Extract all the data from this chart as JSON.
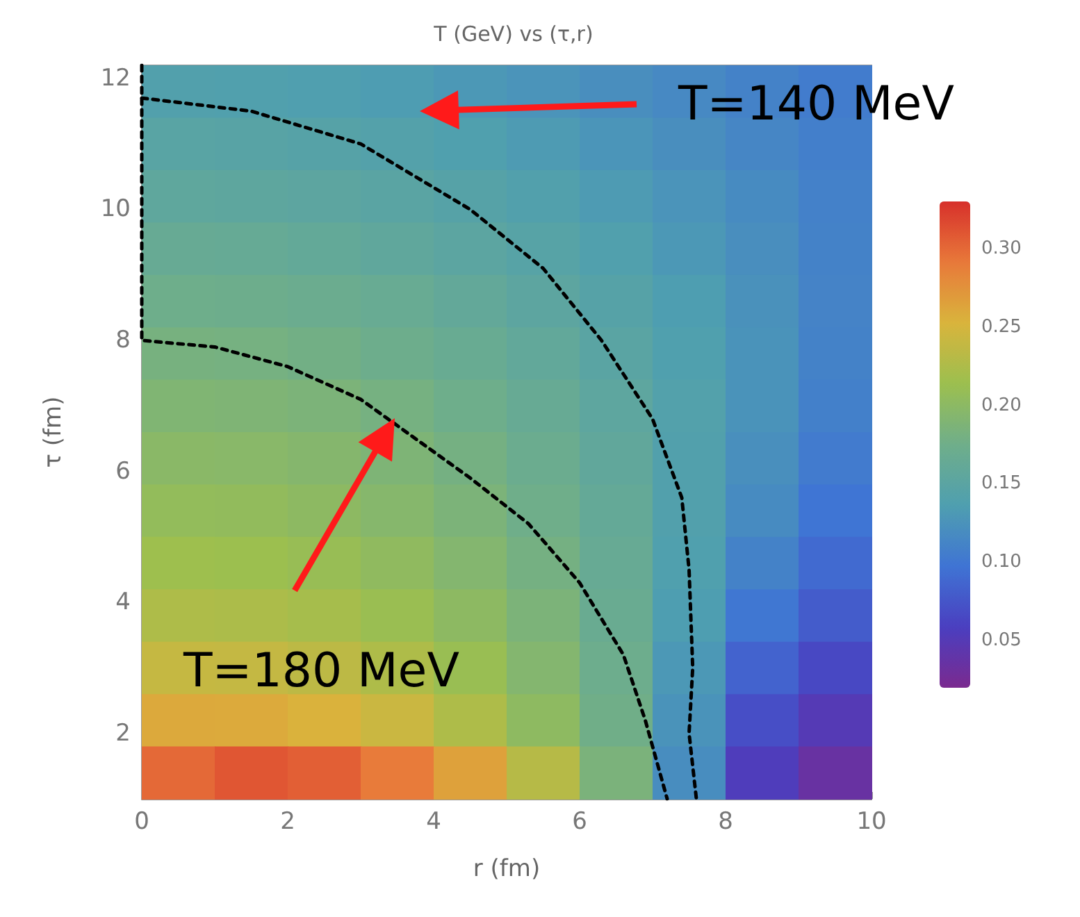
{
  "chart_data": {
    "type": "heatmap",
    "title": "T (GeV) vs (τ,r)",
    "xlabel": "r (fm)",
    "ylabel": "τ (fm)",
    "x": [
      0.5,
      1.5,
      2.5,
      3.5,
      4.5,
      5.5,
      6.5,
      7.5,
      8.5,
      9.5
    ],
    "y": [
      11.8,
      11.0,
      10.2,
      9.4,
      8.6,
      7.8,
      7.0,
      6.2,
      5.4,
      4.6,
      3.8,
      3.0,
      2.2,
      1.4
    ],
    "cells": [
      [
        0.14,
        0.139,
        0.137,
        0.134,
        0.13,
        0.126,
        0.121,
        0.116,
        0.11,
        0.105
      ],
      [
        0.148,
        0.147,
        0.145,
        0.142,
        0.138,
        0.133,
        0.127,
        0.121,
        0.114,
        0.107
      ],
      [
        0.156,
        0.155,
        0.153,
        0.15,
        0.145,
        0.14,
        0.133,
        0.126,
        0.118,
        0.109
      ],
      [
        0.165,
        0.164,
        0.161,
        0.157,
        0.152,
        0.146,
        0.139,
        0.13,
        0.121,
        0.11
      ],
      [
        0.174,
        0.173,
        0.17,
        0.166,
        0.16,
        0.153,
        0.145,
        0.135,
        0.124,
        0.111
      ],
      [
        0.182,
        0.181,
        0.178,
        0.173,
        0.167,
        0.159,
        0.149,
        0.138,
        0.125,
        0.11
      ],
      [
        0.19,
        0.189,
        0.186,
        0.181,
        0.174,
        0.165,
        0.154,
        0.141,
        0.125,
        0.108
      ],
      [
        0.198,
        0.197,
        0.194,
        0.188,
        0.18,
        0.17,
        0.158,
        0.14,
        0.122,
        0.104
      ],
      [
        0.206,
        0.205,
        0.201,
        0.195,
        0.186,
        0.175,
        0.162,
        0.14,
        0.118,
        0.098
      ],
      [
        0.215,
        0.214,
        0.21,
        0.203,
        0.193,
        0.18,
        0.165,
        0.138,
        0.11,
        0.09
      ],
      [
        0.225,
        0.224,
        0.22,
        0.212,
        0.201,
        0.186,
        0.168,
        0.135,
        0.1,
        0.08
      ],
      [
        0.24,
        0.239,
        0.234,
        0.225,
        0.211,
        0.193,
        0.172,
        0.13,
        0.085,
        0.065
      ],
      [
        0.26,
        0.259,
        0.254,
        0.243,
        0.225,
        0.202,
        0.176,
        0.125,
        0.07,
        0.05
      ],
      [
        0.3,
        0.31,
        0.305,
        0.29,
        0.265,
        0.23,
        0.185,
        0.12,
        0.055,
        0.035
      ]
    ],
    "clim": [
      0.02,
      0.33
    ],
    "cticks": [
      0.05,
      {
        "value": 0.1,
        "label": "0.10"
      },
      0.15,
      {
        "value": 0.2,
        "label": "0.20"
      },
      0.25,
      {
        "value": 0.3,
        "label": "0.30"
      }
    ],
    "xlim": [
      0,
      10
    ],
    "xticks": [
      0,
      2,
      4,
      6,
      8,
      10
    ],
    "ylim": [
      1,
      12.2
    ],
    "yticks": [
      2,
      4,
      6,
      8,
      10,
      12
    ],
    "series": [
      {
        "type": "line",
        "color": "#000000",
        "line_style": "dashed",
        "marker": "none",
        "x": [
          0,
          0,
          1,
          2,
          3,
          3.5,
          4.5,
          5.3,
          6,
          6.6,
          6.9,
          7.2
        ],
        "values": [
          12.2,
          8,
          7.9,
          7.6,
          7.1,
          6.7,
          5.9,
          5.2,
          4.3,
          3.2,
          2.2,
          1
        ]
      },
      {
        "type": "line",
        "color": "#000000",
        "line_style": "dashed",
        "marker": "none",
        "x": [
          0,
          1.5,
          3,
          4.5,
          5.5,
          6.3,
          7,
          7.4,
          7.5,
          7.55,
          7.5,
          7.6
        ],
        "values": [
          11.7,
          11.5,
          11,
          10,
          9.1,
          8,
          6.8,
          5.6,
          4.5,
          3,
          2,
          1
        ]
      }
    ],
    "annotations": [
      "T=140 MeV",
      "T=180 MeV"
    ]
  }
}
